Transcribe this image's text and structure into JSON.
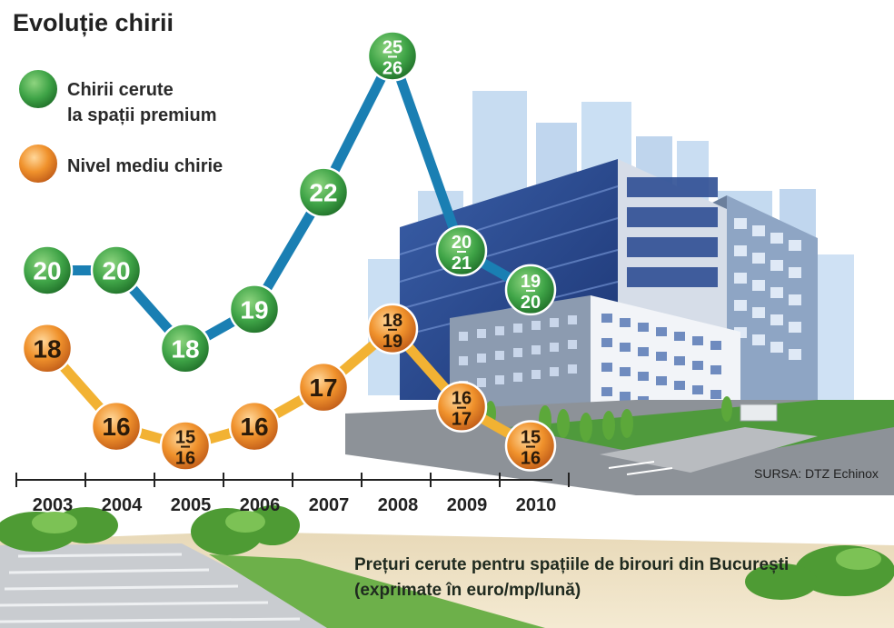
{
  "colors": {
    "premium_fill": "#3fa447",
    "premium_line": "#1a7fb3",
    "average_fill": "#f0922c",
    "average_line": "#f2b233"
  },
  "chart_data": {
    "type": "line",
    "title": "Evoluție chirii",
    "categories": [
      "2003",
      "2004",
      "2005",
      "2006",
      "2007",
      "2008",
      "2009",
      "2010"
    ],
    "series": [
      {
        "name": "Chirii cerute la spații premium",
        "values": [
          20,
          20,
          18,
          19,
          22,
          25.5,
          20.5,
          19.5
        ],
        "labels": [
          [
            "20"
          ],
          [
            "20"
          ],
          [
            "18"
          ],
          [
            "19"
          ],
          [
            "22"
          ],
          [
            "25",
            "26"
          ],
          [
            "20",
            "21"
          ],
          [
            "19",
            "20"
          ]
        ]
      },
      {
        "name": "Nivel mediu chirie",
        "values": [
          18,
          16,
          15.5,
          16,
          17,
          18.5,
          16.5,
          15.5
        ],
        "labels": [
          [
            "18"
          ],
          [
            "16"
          ],
          [
            "15",
            "16"
          ],
          [
            "16"
          ],
          [
            "17"
          ],
          [
            "18",
            "19"
          ],
          [
            "16",
            "17"
          ],
          [
            "15",
            "16"
          ]
        ]
      }
    ],
    "legend": [
      {
        "line1": "Chirii cerute",
        "line2": "la spații premium"
      },
      {
        "line1": "Nivel mediu chirie",
        "line2": ""
      }
    ],
    "legend_placement": "top-left",
    "grid": false,
    "ylim": [
      15,
      26
    ],
    "source": "SURSA: DTZ Echinox",
    "caption_line1": "Prețuri cerute pentru spațiile de birouri din București",
    "caption_line2": "(exprimate în euro/mp/lună)"
  }
}
